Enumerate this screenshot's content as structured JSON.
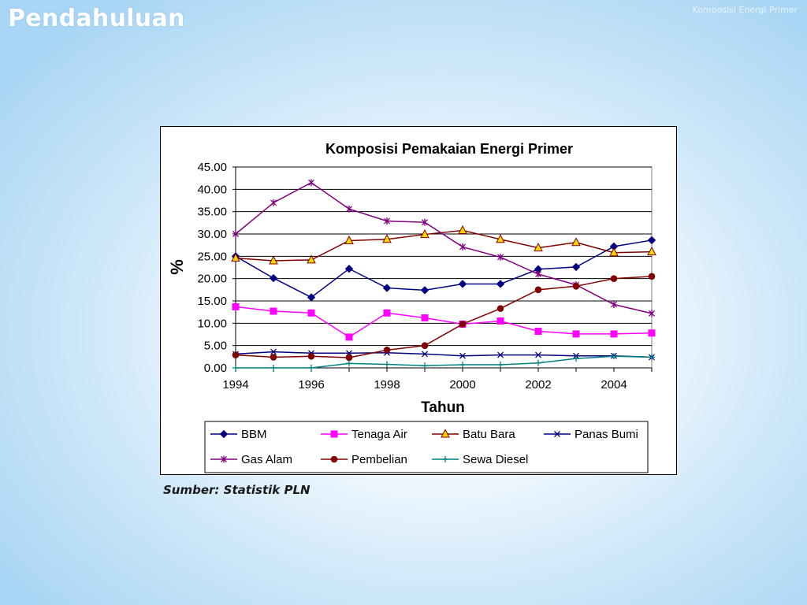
{
  "slide": {
    "title": "Pendahuluan",
    "corner_note": "Komposisi Energi Primer",
    "source": "Sumber: Statistik PLN"
  },
  "chart_data": {
    "type": "line",
    "title": "Komposisi Pemakaian Energi Primer",
    "xlabel": "Tahun",
    "ylabel": "%",
    "ylim": [
      0,
      45
    ],
    "xlim": [
      1994,
      2005
    ],
    "grid": "horizontal",
    "legend_position": "bottom",
    "x": [
      1994,
      1995,
      1996,
      1997,
      1998,
      1999,
      2000,
      2001,
      2002,
      2003,
      2004,
      2005
    ],
    "x_ticks": [
      "1994",
      "1996",
      "1998",
      "2000",
      "2002",
      "2004"
    ],
    "y_ticks": [
      "0.00",
      "5.00",
      "10.00",
      "15.00",
      "20.00",
      "25.00",
      "30.00",
      "35.00",
      "40.00",
      "45.00"
    ],
    "series": [
      {
        "name": "BBM",
        "color": "#000080",
        "marker": "diamond",
        "values": [
          25.0,
          20.1,
          15.8,
          22.2,
          17.9,
          17.4,
          18.8,
          18.8,
          22.1,
          22.6,
          27.2,
          28.6
        ]
      },
      {
        "name": "Tenaga Air",
        "color": "#FF00FF",
        "marker": "square",
        "values": [
          13.7,
          12.7,
          12.3,
          6.9,
          12.3,
          11.2,
          9.8,
          10.5,
          8.2,
          7.6,
          7.6,
          7.8
        ]
      },
      {
        "name": "Batu Bara",
        "color": "#800000",
        "marker": "triangle",
        "fill": "#FFD700",
        "values": [
          24.6,
          24.0,
          24.2,
          28.5,
          28.8,
          29.9,
          30.8,
          28.8,
          26.9,
          28.1,
          25.8,
          26.0
        ]
      },
      {
        "name": "Panas Bumi",
        "color": "#000080",
        "marker": "x",
        "values": [
          3.1,
          3.6,
          3.3,
          3.3,
          3.4,
          3.1,
          2.7,
          2.9,
          2.9,
          2.7,
          2.7,
          2.4
        ]
      },
      {
        "name": "Gas Alam",
        "color": "#800080",
        "marker": "star",
        "values": [
          30.0,
          37.0,
          41.5,
          35.6,
          32.9,
          32.6,
          27.1,
          24.8,
          21.0,
          18.6,
          14.2,
          12.2
        ]
      },
      {
        "name": "Pembelian",
        "color": "#800000",
        "marker": "circle",
        "fill": "#800000",
        "values": [
          2.9,
          2.4,
          2.6,
          2.3,
          4.0,
          5.0,
          9.8,
          13.3,
          17.5,
          18.3,
          20.0,
          20.5
        ]
      },
      {
        "name": "Sewa Diesel",
        "color": "#008080",
        "marker": "plus",
        "values": [
          0.0,
          0.0,
          0.0,
          1.0,
          0.8,
          0.5,
          0.7,
          0.7,
          1.1,
          2.1,
          2.6,
          2.4
        ]
      }
    ]
  }
}
